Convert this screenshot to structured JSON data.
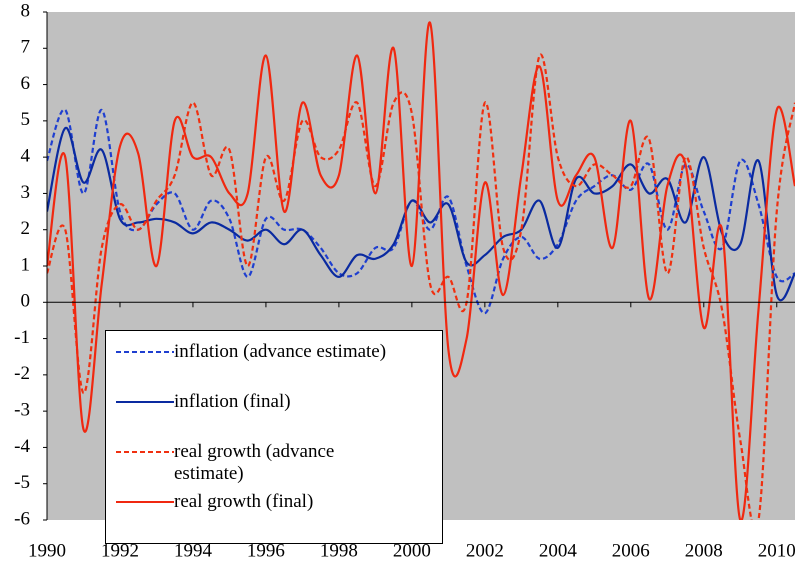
{
  "chart_data": {
    "type": "line",
    "x": [
      1990,
      1990.5,
      1991,
      1991.5,
      1992,
      1992.5,
      1993,
      1993.5,
      1994,
      1994.5,
      1995,
      1995.5,
      1996,
      1996.5,
      1997,
      1997.5,
      1998,
      1998.5,
      1999,
      1999.5,
      2000,
      2000.5,
      2001,
      2001.5,
      2002,
      2002.5,
      2003,
      2003.5,
      2004,
      2004.5,
      2005,
      2005.5,
      2006,
      2006.5,
      2007,
      2007.5,
      2008,
      2008.5,
      2009,
      2009.5,
      2010,
      2010.5
    ],
    "series": [
      {
        "name": "inflation (advance estimate)",
        "color": "#1f3fd0",
        "dash": true,
        "values": [
          3.9,
          5.3,
          3.0,
          5.3,
          2.5,
          2.0,
          2.7,
          3.0,
          2.0,
          2.8,
          2.3,
          0.7,
          2.3,
          2.0,
          2.0,
          1.5,
          0.8,
          0.8,
          1.5,
          1.5,
          2.8,
          2.0,
          2.9,
          1.0,
          -0.3,
          1.2,
          1.8,
          1.2,
          1.6,
          2.8,
          3.2,
          3.5,
          3.1,
          3.8,
          2.0,
          3.8,
          2.5,
          1.5,
          3.9,
          2.7,
          0.7,
          0.8
        ]
      },
      {
        "name": "inflation (final)",
        "color": "#0a2aa0",
        "dash": false,
        "values": [
          2.5,
          4.8,
          3.3,
          4.2,
          2.3,
          2.2,
          2.3,
          2.2,
          1.9,
          2.2,
          2.0,
          1.7,
          2.0,
          1.6,
          2.0,
          1.3,
          0.7,
          1.3,
          1.2,
          1.6,
          2.8,
          2.2,
          2.7,
          1.1,
          1.3,
          1.8,
          2.0,
          2.8,
          1.5,
          3.4,
          3.0,
          3.2,
          3.8,
          3.0,
          3.4,
          2.2,
          4.0,
          1.9,
          1.6,
          3.9,
          0.2,
          0.8
        ]
      },
      {
        "name": "real growth (advance estimate)",
        "color": "#f03010",
        "dash": true,
        "values": [
          0.8,
          2.0,
          -2.5,
          1.5,
          2.7,
          2.0,
          2.8,
          3.5,
          5.5,
          3.5,
          4.2,
          1.0,
          4.0,
          2.8,
          5.0,
          4.0,
          4.2,
          5.5,
          3.2,
          5.5,
          5.2,
          0.5,
          0.7,
          0.0,
          5.5,
          1.5,
          2.0,
          6.8,
          4.0,
          3.2,
          3.8,
          3.5,
          3.2,
          4.5,
          0.8,
          4.0,
          1.5,
          -0.2,
          -3.8,
          -6.0,
          2.5,
          5.5
        ]
      },
      {
        "name": "real growth (final)",
        "color": "#f02810",
        "dash": false,
        "values": [
          1.0,
          4.0,
          -3.5,
          0.5,
          4.3,
          4.1,
          1.0,
          5.0,
          4.0,
          4.0,
          3.0,
          3.0,
          6.8,
          2.5,
          5.5,
          3.5,
          3.5,
          6.8,
          3.0,
          7.0,
          1.0,
          7.7,
          -1.3,
          -1.0,
          3.3,
          0.2,
          3.5,
          6.5,
          2.8,
          3.5,
          4.0,
          1.5,
          5.0,
          0.1,
          3.2,
          3.8,
          -0.7,
          2.0,
          -6.0,
          -0.2,
          5.3,
          3.2
        ]
      }
    ],
    "xlim": [
      1990,
      2010.5
    ],
    "xticks": [
      1990,
      1992,
      1994,
      1996,
      1998,
      2000,
      2002,
      2004,
      2006,
      2008,
      2010
    ],
    "ylim": [
      -6,
      8
    ],
    "yticks": [
      -6,
      -5,
      -4,
      -3,
      -2,
      -1,
      0,
      1,
      2,
      3,
      4,
      5,
      6,
      7,
      8
    ]
  }
}
